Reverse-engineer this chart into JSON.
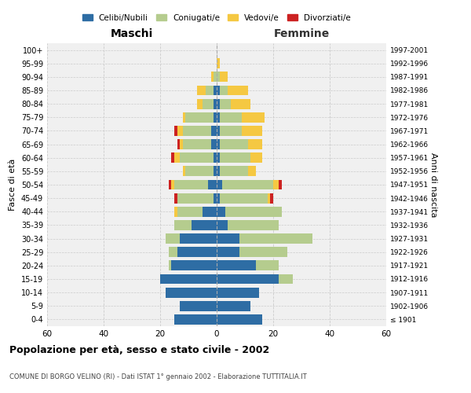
{
  "age_groups": [
    "100+",
    "95-99",
    "90-94",
    "85-89",
    "80-84",
    "75-79",
    "70-74",
    "65-69",
    "60-64",
    "55-59",
    "50-54",
    "45-49",
    "40-44",
    "35-39",
    "30-34",
    "25-29",
    "20-24",
    "15-19",
    "10-14",
    "5-9",
    "0-4"
  ],
  "birth_years": [
    "≤ 1901",
    "1902-1906",
    "1907-1911",
    "1912-1916",
    "1917-1921",
    "1922-1926",
    "1927-1931",
    "1932-1936",
    "1937-1941",
    "1942-1946",
    "1947-1951",
    "1952-1956",
    "1957-1961",
    "1962-1966",
    "1967-1971",
    "1972-1976",
    "1977-1981",
    "1982-1986",
    "1987-1991",
    "1992-1996",
    "1997-2001"
  ],
  "maschi": {
    "celibi": [
      0,
      0,
      0,
      1,
      1,
      1,
      2,
      2,
      1,
      1,
      3,
      1,
      5,
      9,
      13,
      14,
      16,
      20,
      18,
      13,
      15
    ],
    "coniugati": [
      0,
      0,
      1,
      3,
      4,
      10,
      10,
      10,
      12,
      10,
      12,
      13,
      9,
      6,
      5,
      3,
      1,
      0,
      0,
      0,
      0
    ],
    "vedovi": [
      0,
      0,
      1,
      3,
      2,
      1,
      2,
      1,
      2,
      1,
      1,
      0,
      1,
      0,
      0,
      0,
      0,
      0,
      0,
      0,
      0
    ],
    "divorziati": [
      0,
      0,
      0,
      0,
      0,
      0,
      1,
      1,
      1,
      0,
      1,
      1,
      0,
      0,
      0,
      0,
      0,
      0,
      0,
      0,
      0
    ]
  },
  "femmine": {
    "nubili": [
      0,
      0,
      0,
      1,
      1,
      1,
      1,
      1,
      1,
      1,
      2,
      1,
      3,
      4,
      8,
      8,
      14,
      22,
      15,
      12,
      16
    ],
    "coniugate": [
      0,
      0,
      1,
      3,
      4,
      8,
      8,
      10,
      11,
      10,
      18,
      17,
      20,
      18,
      26,
      17,
      8,
      5,
      0,
      0,
      0
    ],
    "vedove": [
      0,
      1,
      3,
      7,
      7,
      8,
      7,
      5,
      4,
      3,
      2,
      1,
      0,
      0,
      0,
      0,
      0,
      0,
      0,
      0,
      0
    ],
    "divorziate": [
      0,
      0,
      0,
      0,
      0,
      0,
      0,
      0,
      0,
      0,
      1,
      1,
      0,
      0,
      0,
      0,
      0,
      0,
      0,
      0,
      0
    ]
  },
  "colors": {
    "celibi": "#2e6da4",
    "coniugati": "#b5cc8e",
    "vedovi": "#f5c842",
    "divorziati": "#cc2222"
  },
  "title": "Popolazione per età, sesso e stato civile - 2002",
  "subtitle": "COMUNE DI BORGO VELINO (RI) - Dati ISTAT 1° gennaio 2002 - Elaborazione TUTTITALIA.IT",
  "xlabel_left": "Maschi",
  "xlabel_right": "Femmine",
  "ylabel_left": "Fasce di età",
  "ylabel_right": "Anni di nascita",
  "xlim": 60,
  "bg_color": "#f0f0f0",
  "grid_color": "#cccccc"
}
